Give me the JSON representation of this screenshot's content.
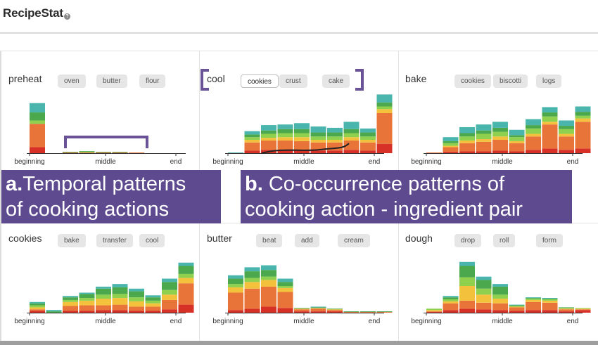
{
  "app": {
    "title": "RecipeStat",
    "help_icon": "help-circle-icon"
  },
  "axis_labels": [
    "beginning",
    "middle",
    "end"
  ],
  "series_colors": [
    "#d73027",
    "#e8743a",
    "#f4c13d",
    "#8fd14e",
    "#4ca84c",
    "#49b5ad"
  ],
  "panels": [
    {
      "action": "preheat",
      "ingredients": [
        "oven",
        "butter",
        "flour"
      ],
      "selected": -1
    },
    {
      "action": "cool",
      "ingredients": [
        "cookies",
        "crust",
        "cake"
      ],
      "selected": 0
    },
    {
      "action": "bake",
      "ingredients": [
        "cookies",
        "biscotti",
        "logs"
      ],
      "selected": -1
    },
    {
      "action": "cookies",
      "ingredients": [
        "bake",
        "transfer",
        "cool"
      ],
      "selected": -1
    },
    {
      "action": "butter",
      "ingredients": [
        "beat",
        "add",
        "cream"
      ],
      "selected": -1
    },
    {
      "action": "dough",
      "ingredients": [
        "drop",
        "roll",
        "form"
      ],
      "selected": -1
    }
  ],
  "annotations": {
    "a_letter": "a.",
    "a_line1": "Temporal patterns",
    "a_line2": "of cooking actions",
    "b_letter": "b.",
    "b_line1": "Co-occurrence patterns of",
    "b_line2": "cooking action - ingredient pair"
  },
  "chart_data": [
    {
      "type": "bar",
      "title": "preheat",
      "x": [
        "beginning",
        "middle",
        "end"
      ],
      "stacks": [
        [
          9,
          35,
          0,
          5,
          12,
          14
        ],
        [
          0,
          0,
          0,
          0,
          0,
          0
        ],
        [
          0,
          1,
          0,
          0,
          1,
          0
        ],
        [
          0,
          1,
          0,
          1,
          1,
          0
        ],
        [
          0,
          1,
          0,
          0,
          1,
          0
        ],
        [
          0,
          1,
          0,
          0,
          1,
          0
        ],
        [
          0,
          1,
          0,
          0,
          0,
          0
        ],
        [
          0,
          0,
          0,
          0,
          0,
          0
        ],
        [
          0,
          0,
          0,
          0,
          0,
          0
        ],
        [
          0,
          0,
          0,
          0,
          0,
          0
        ]
      ]
    },
    {
      "type": "bar",
      "title": "cool",
      "x": [
        "beginning",
        "middle",
        "end"
      ],
      "stacks": [
        [
          0,
          0,
          0,
          0,
          0,
          1
        ],
        [
          4,
          12,
          4,
          4,
          4,
          5
        ],
        [
          5,
          14,
          4,
          6,
          5,
          8
        ],
        [
          5,
          14,
          5,
          6,
          6,
          7
        ],
        [
          5,
          13,
          6,
          6,
          6,
          9
        ],
        [
          4,
          12,
          4,
          5,
          6,
          9
        ],
        [
          4,
          12,
          4,
          5,
          6,
          7
        ],
        [
          5,
          14,
          5,
          6,
          6,
          11
        ],
        [
          4,
          12,
          4,
          5,
          6,
          6
        ],
        [
          14,
          46,
          6,
          4,
          6,
          12
        ]
      ]
    },
    {
      "type": "bar",
      "title": "bake",
      "x": [
        "beginning",
        "middle",
        "end"
      ],
      "stacks": [
        [
          0,
          1,
          0,
          0,
          0,
          0
        ],
        [
          2,
          7,
          2,
          4,
          3,
          6
        ],
        [
          3,
          12,
          4,
          6,
          5,
          9
        ],
        [
          3,
          14,
          4,
          8,
          5,
          9
        ],
        [
          4,
          16,
          5,
          7,
          6,
          9
        ],
        [
          3,
          12,
          3,
          6,
          3,
          8
        ],
        [
          5,
          20,
          4,
          8,
          5,
          9
        ],
        [
          7,
          36,
          4,
          8,
          6,
          8
        ],
        [
          5,
          20,
          4,
          7,
          5,
          8
        ],
        [
          7,
          40,
          5,
          4,
          6,
          8
        ]
      ]
    },
    {
      "type": "bar",
      "title": "cookies",
      "x": [
        "beginning",
        "middle",
        "end"
      ],
      "stacks": [
        [
          3,
          2,
          3,
          3,
          3,
          2
        ],
        [
          0,
          0,
          0,
          0,
          2,
          2
        ],
        [
          3,
          7,
          6,
          3,
          4,
          2
        ],
        [
          3,
          8,
          7,
          4,
          6,
          2
        ],
        [
          4,
          7,
          10,
          6,
          9,
          3
        ],
        [
          4,
          8,
          10,
          6,
          10,
          5
        ],
        [
          3,
          6,
          8,
          6,
          9,
          4
        ],
        [
          3,
          6,
          5,
          4,
          5,
          3
        ],
        [
          5,
          14,
          8,
          7,
          12,
          5
        ],
        [
          12,
          32,
          8,
          6,
          12,
          5
        ]
      ]
    },
    {
      "type": "bar",
      "title": "butter",
      "x": [
        "beginning",
        "middle",
        "end"
      ],
      "stacks": [
        [
          4,
          26,
          8,
          5,
          8,
          5
        ],
        [
          6,
          30,
          10,
          6,
          10,
          6
        ],
        [
          9,
          30,
          10,
          5,
          10,
          7
        ],
        [
          7,
          24,
          6,
          3,
          6,
          5
        ],
        [
          2,
          3,
          1,
          0,
          1,
          0
        ],
        [
          2,
          4,
          1,
          0,
          1,
          1
        ],
        [
          2,
          2,
          1,
          0,
          1,
          0
        ],
        [
          0,
          1,
          0,
          0,
          1,
          0
        ],
        [
          0,
          1,
          0,
          0,
          1,
          0
        ],
        [
          0,
          1,
          0,
          0,
          1,
          0
        ]
      ]
    },
    {
      "type": "bar",
      "title": "dough",
      "x": [
        "beginning",
        "middle",
        "end"
      ],
      "stacks": [
        [
          1,
          1,
          2,
          2,
          0,
          0
        ],
        [
          4,
          10,
          3,
          3,
          3,
          2
        ],
        [
          6,
          12,
          22,
          13,
          17,
          6
        ],
        [
          5,
          10,
          12,
          9,
          13,
          5
        ],
        [
          4,
          10,
          7,
          6,
          12,
          4
        ],
        [
          3,
          5,
          1,
          1,
          1,
          1
        ],
        [
          4,
          12,
          3,
          2,
          1,
          1
        ],
        [
          4,
          11,
          3,
          2,
          1,
          1
        ],
        [
          2,
          3,
          1,
          1,
          1,
          0
        ],
        [
          4,
          1,
          1,
          1,
          0,
          0
        ]
      ]
    }
  ]
}
